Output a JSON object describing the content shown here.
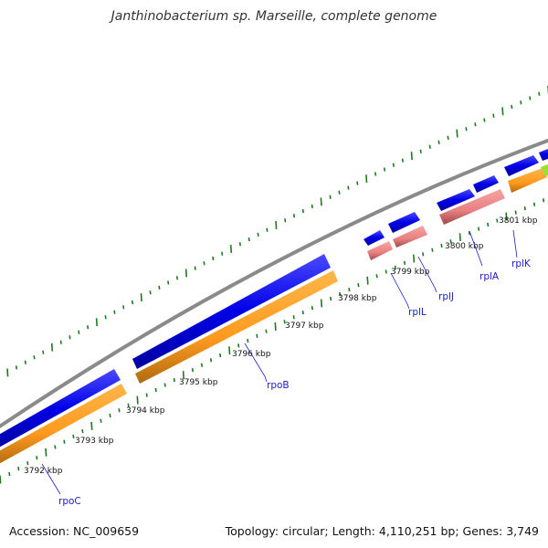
{
  "title": "Janthinobacterium sp. Marseille, complete genome",
  "footer": {
    "accession": "Accession: NC_009659",
    "summary": "Topology: circular; Length: 4,110,251 bp; Genes: 3,749"
  },
  "colors": {
    "backbone": "#8a8a8a",
    "cds": "#1010e0",
    "gene": "#ff9a1e",
    "rrna_like": "#e88080",
    "gene_label": "#1a1acc",
    "ticks": "#1e7a1e",
    "highlight": "#99e030"
  },
  "kbp_labels": [
    "3792 kbp",
    "3793 kbp",
    "3794 kbp",
    "3795 kbp",
    "3796 kbp",
    "3797 kbp",
    "3798 kbp",
    "3799 kbp",
    "3800 kbp",
    "3801 kbp"
  ],
  "gene_labels": [
    "rpoC",
    "rpoB",
    "rplL",
    "rplJ",
    "rplA",
    "rplK"
  ]
}
